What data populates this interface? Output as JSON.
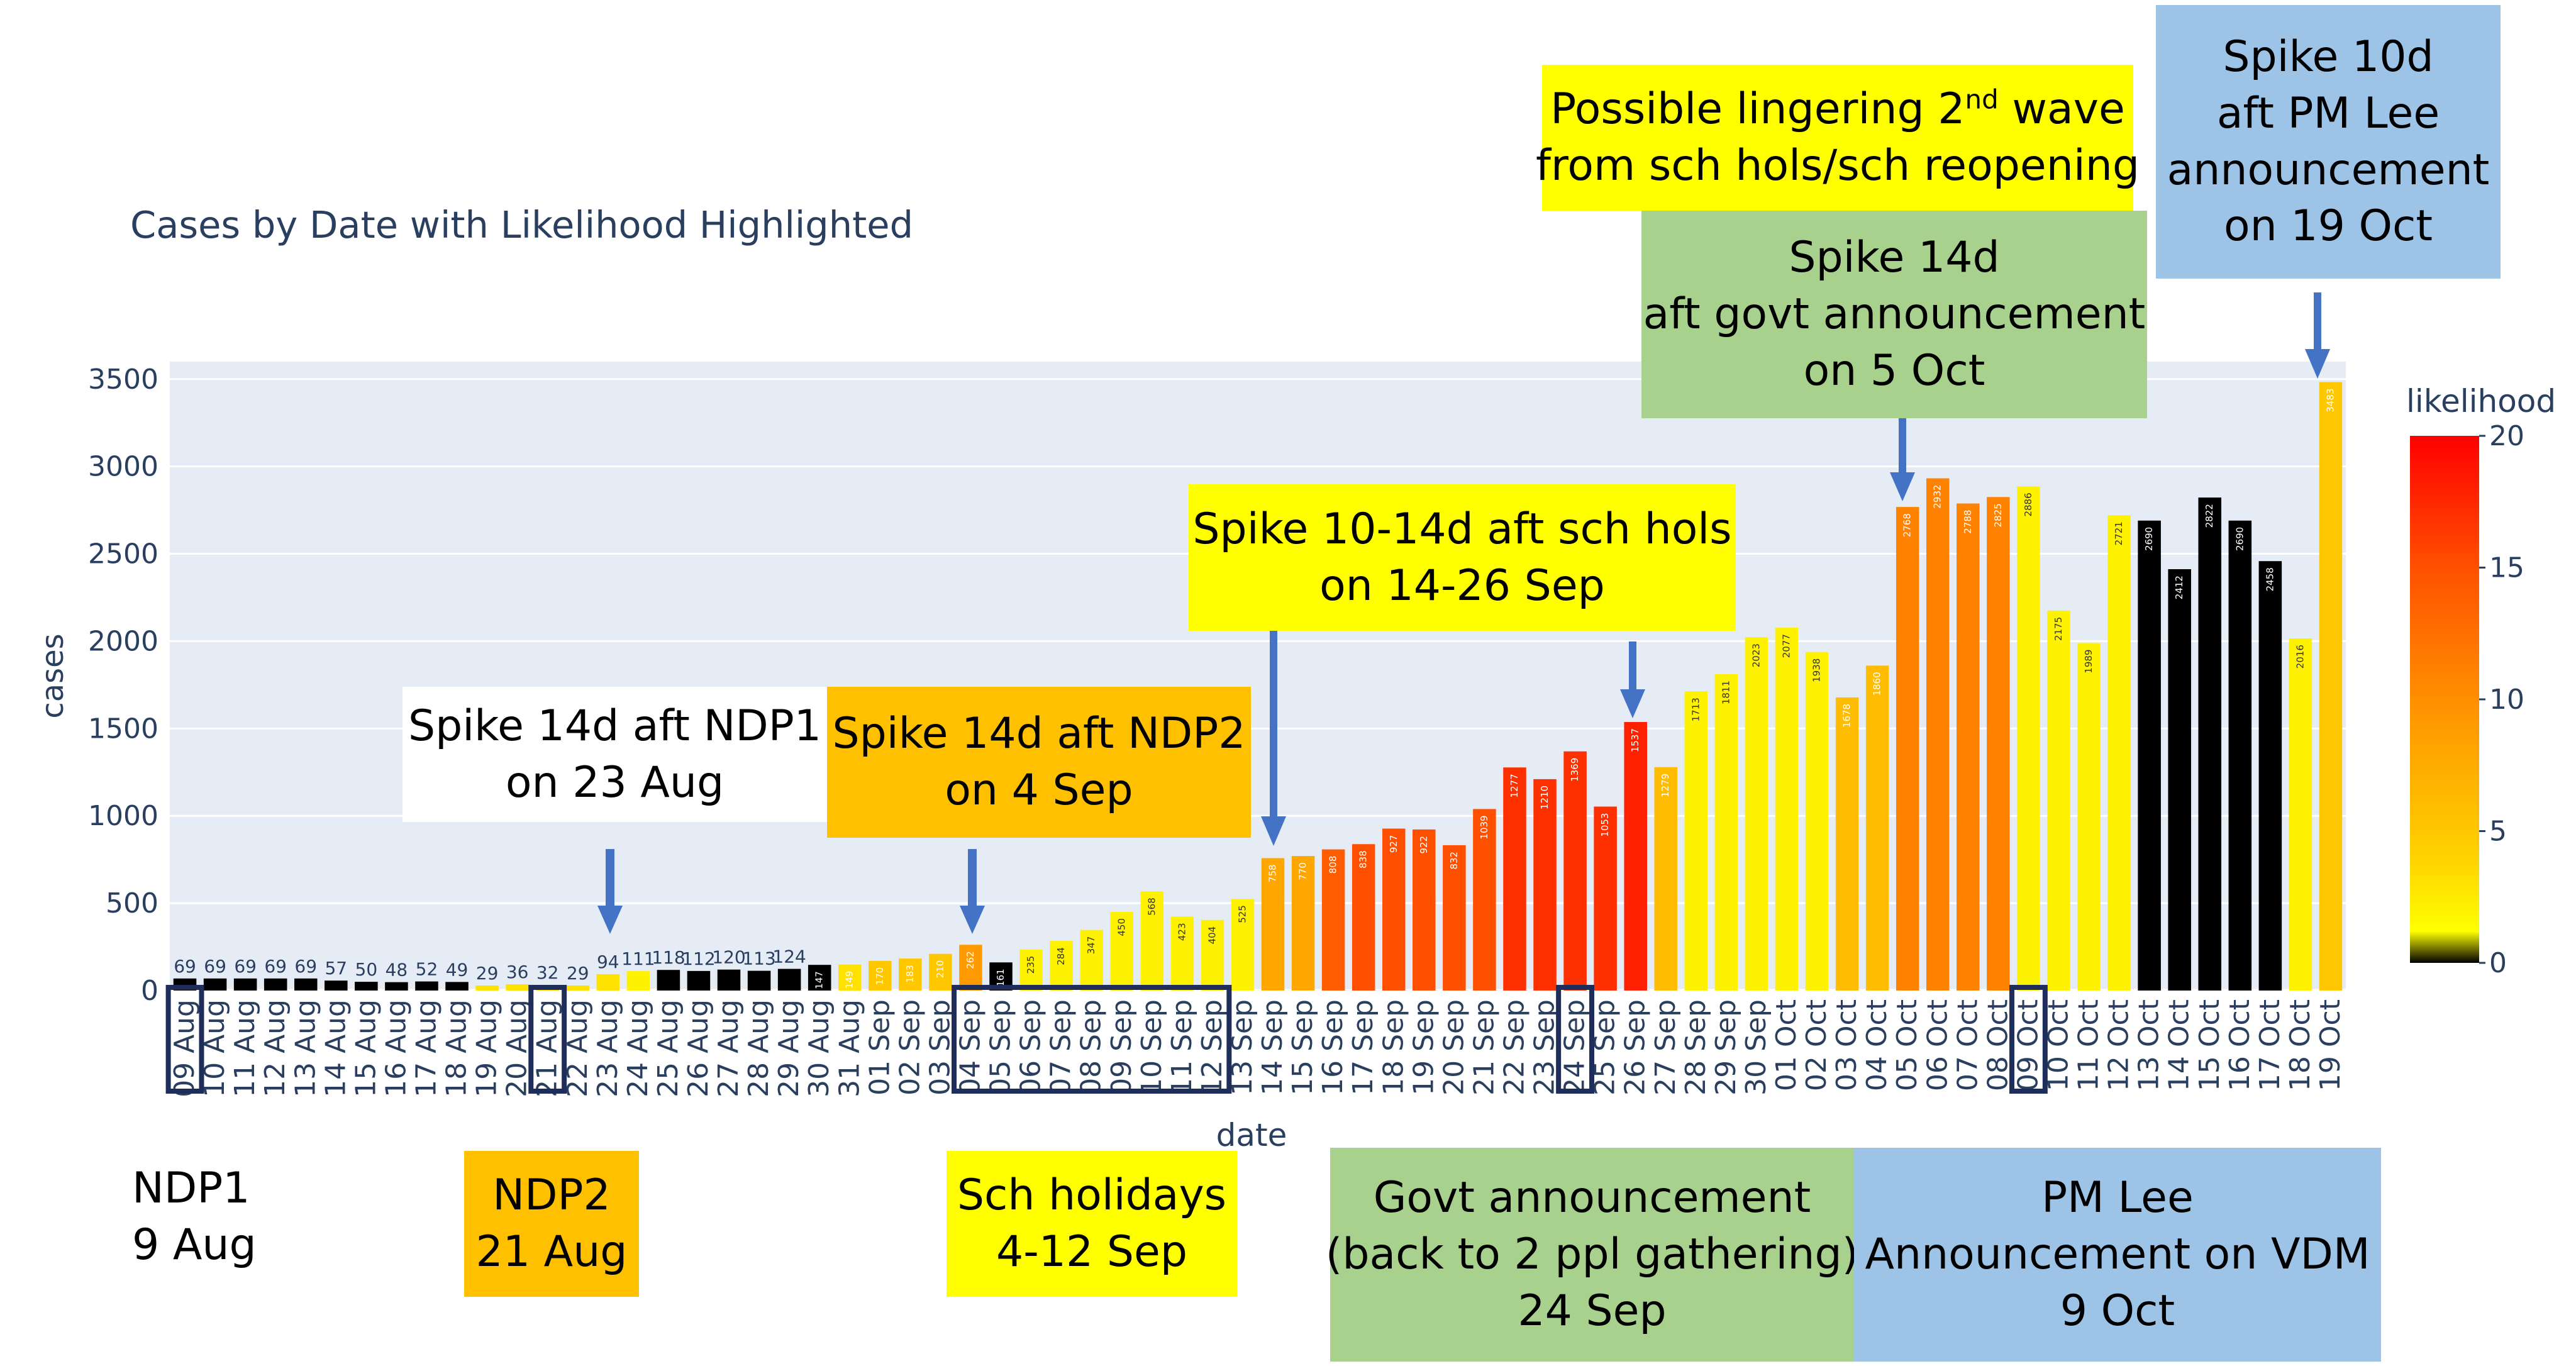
{
  "chart_data": {
    "type": "bar",
    "title": "Cases by Date with Likelihood Highlighted",
    "xlabel": "date",
    "ylabel": "cases",
    "ylim": [
      0,
      3600
    ],
    "yticks": [
      0,
      500,
      1000,
      1500,
      2000,
      2500,
      3000,
      3500
    ],
    "categories": [
      "09 Aug",
      "10 Aug",
      "11 Aug",
      "12 Aug",
      "13 Aug",
      "14 Aug",
      "15 Aug",
      "16 Aug",
      "17 Aug",
      "18 Aug",
      "19 Aug",
      "20 Aug",
      "21 Aug",
      "22 Aug",
      "23 Aug",
      "24 Aug",
      "25 Aug",
      "26 Aug",
      "27 Aug",
      "28 Aug",
      "29 Aug",
      "30 Aug",
      "31 Aug",
      "01 Sep",
      "02 Sep",
      "03 Sep",
      "04 Sep",
      "05 Sep",
      "06 Sep",
      "07 Sep",
      "08 Sep",
      "09 Sep",
      "10 Sep",
      "11 Sep",
      "12 Sep",
      "13 Sep",
      "14 Sep",
      "15 Sep",
      "16 Sep",
      "17 Sep",
      "18 Sep",
      "19 Sep",
      "20 Sep",
      "21 Sep",
      "22 Sep",
      "23 Sep",
      "24 Sep",
      "25 Sep",
      "26 Sep",
      "27 Sep",
      "28 Sep",
      "29 Sep",
      "30 Sep",
      "01 Oct",
      "02 Oct",
      "03 Oct",
      "04 Oct",
      "05 Oct",
      "06 Oct",
      "07 Oct",
      "08 Oct",
      "09 Oct",
      "10 Oct",
      "11 Oct",
      "12 Oct",
      "13 Oct",
      "14 Oct",
      "15 Oct",
      "16 Oct",
      "17 Oct",
      "18 Oct",
      "19 Oct"
    ],
    "values": [
      69,
      69,
      69,
      69,
      69,
      57,
      50,
      48,
      52,
      49,
      29,
      36,
      32,
      29,
      94,
      111,
      118,
      112,
      120,
      113,
      124,
      147,
      149,
      170,
      183,
      210,
      262,
      161,
      235,
      284,
      347,
      450,
      568,
      423,
      404,
      525,
      758,
      770,
      808,
      838,
      927,
      922,
      832,
      1039,
      1277,
      1210,
      1369,
      1053,
      1537,
      1279,
      1713,
      1811,
      2023,
      2077,
      1938,
      1678,
      1860,
      2768,
      2932,
      2788,
      2825,
      2886,
      2175,
      1989,
      2721,
      2690,
      2412,
      2822,
      2690,
      2458,
      2016,
      3483
    ],
    "likelihood": [
      0,
      0,
      0,
      0,
      0,
      0,
      0,
      0,
      0,
      0,
      3,
      3,
      3,
      3,
      3,
      2,
      0,
      0,
      0,
      0,
      0,
      0,
      3,
      5,
      5,
      5,
      9,
      0,
      2,
      2,
      2,
      2,
      2,
      2,
      2,
      2,
      8,
      8,
      14,
      15,
      15,
      15,
      15,
      15,
      17,
      17,
      17,
      17,
      18,
      6,
      2,
      2,
      2,
      2,
      2,
      6,
      6,
      11,
      11,
      11,
      11,
      2,
      2,
      2,
      2,
      0,
      0,
      0,
      0,
      0,
      2,
      5
    ],
    "colorbar": {
      "title": "likelihood",
      "ticks": [
        0,
        5,
        10,
        15,
        20
      ],
      "range": [
        0,
        20
      ]
    },
    "highlighted_dates": [
      "09 Aug",
      "21 Aug",
      "04 Sep",
      "05 Sep",
      "06 Sep",
      "07 Sep",
      "08 Sep",
      "09 Sep",
      "10 Sep",
      "11 Sep",
      "12 Sep",
      "24 Sep",
      "09 Oct"
    ]
  },
  "annotations": {
    "spike_ndp1": {
      "line1": "Spike 14d aft NDP1",
      "line2": "on 23 Aug"
    },
    "spike_ndp2": {
      "line1": "Spike 14d aft NDP2",
      "line2": "on 4 Sep"
    },
    "spike_sch_hols": {
      "line1": "Spike 10-14d aft sch hols",
      "line2": "on 14-26 Sep"
    },
    "second_wave": {
      "line1_pre": "Possible lingering 2",
      "line1_sup": "nd",
      "line1_post": " wave",
      "line2": "from sch hols/sch reopening"
    },
    "spike_govt": {
      "line1": "Spike 14d",
      "line2": "aft govt announcement",
      "line3": "on 5 Oct"
    },
    "spike_pm_lee": {
      "line1": "Spike 10d",
      "line2": "aft PM Lee",
      "line3": "announcement",
      "line4": "on 19 Oct"
    }
  },
  "events": {
    "ndp1": {
      "line1": "NDP1",
      "line2": "9 Aug"
    },
    "ndp2": {
      "line1": "NDP2",
      "line2": "21 Aug"
    },
    "sch_holidays": {
      "line1": "Sch holidays",
      "line2": "4-12 Sep"
    },
    "govt_announcement": {
      "line1": "Govt announcement",
      "line2": "(back to 2 ppl gathering)",
      "line3": "24 Sep"
    },
    "pm_lee": {
      "line1": "PM Lee",
      "line2": "Announcement on VDM",
      "line3": "9 Oct"
    }
  },
  "colors": {
    "plot_bg": "#e5ecf6",
    "axis_text": "#2a3f5f",
    "arrow": "#4472c4",
    "box_navy": "#1f2d5a",
    "yellow_box": "#ffff00",
    "orange_box": "#ffc000",
    "green_box": "#a9d18e",
    "blue_box": "#9dc3e6"
  }
}
